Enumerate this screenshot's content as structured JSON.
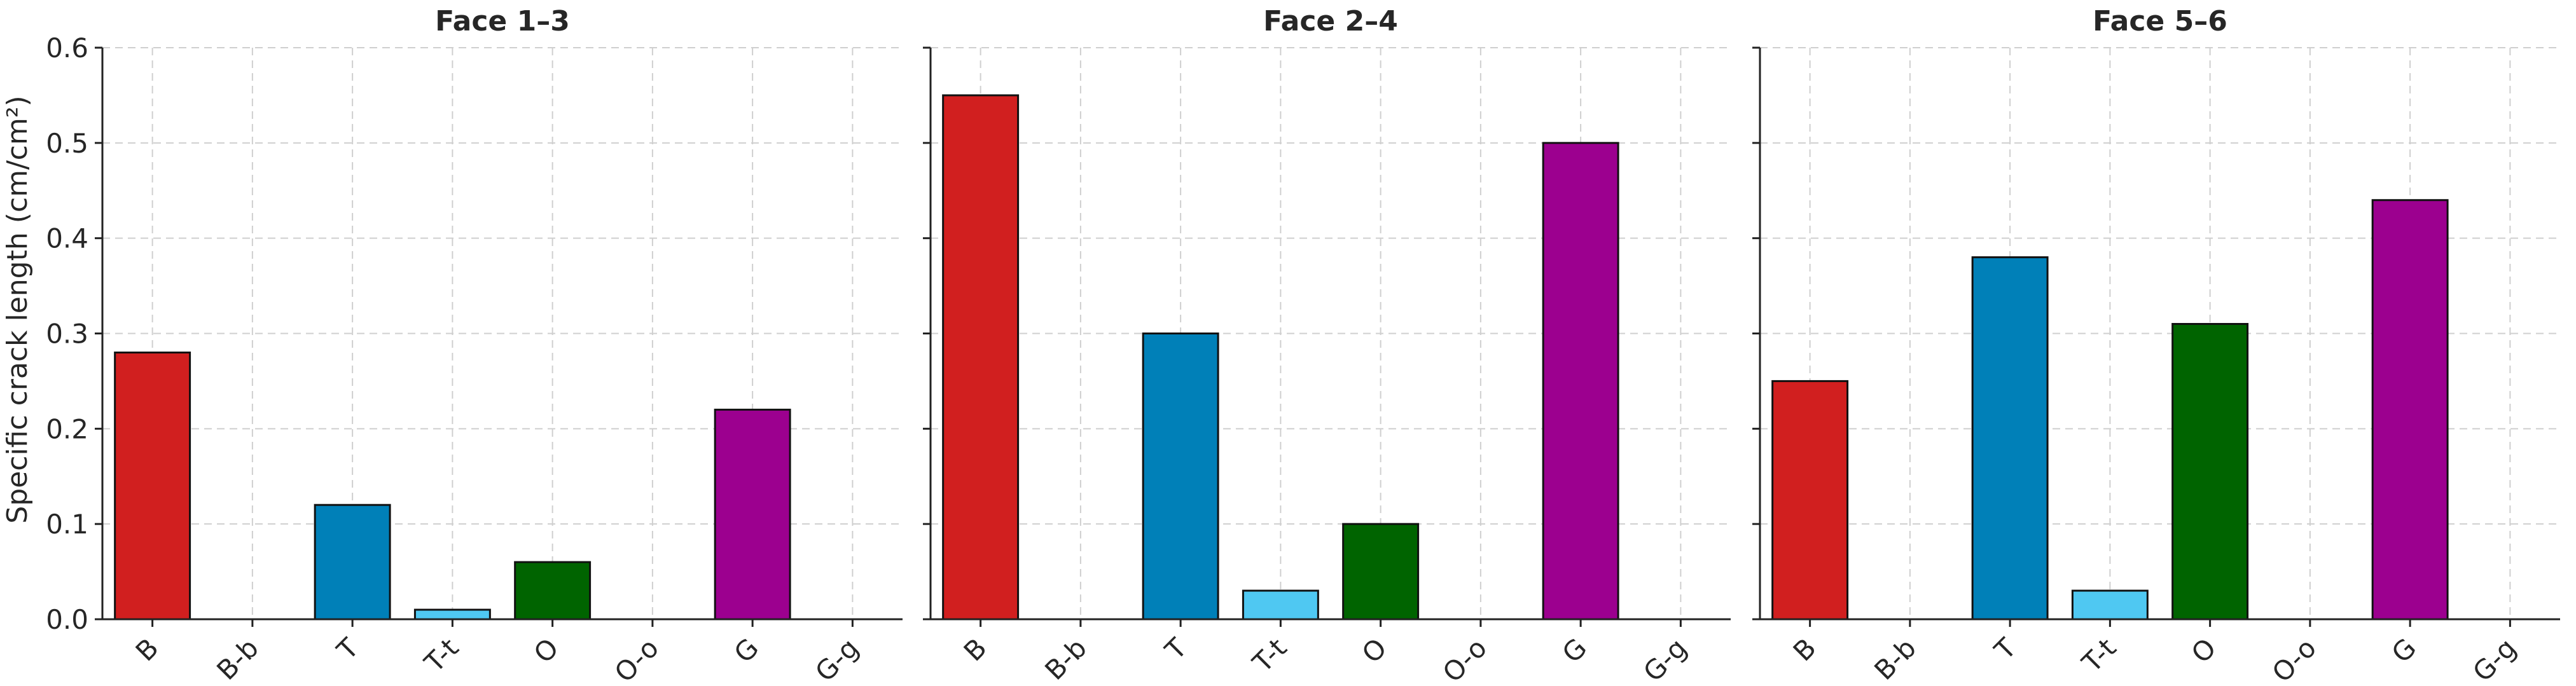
{
  "chart_data": {
    "type": "bar",
    "ylabel": "Specific crack length (cm/cm²)",
    "ylim": [
      0,
      0.6
    ],
    "yticks": [
      "0.0",
      "0.1",
      "0.2",
      "0.3",
      "0.4",
      "0.5",
      "0.6"
    ],
    "categories": [
      "B",
      "B-b",
      "T",
      "T-t",
      "O",
      "O-o",
      "G",
      "G-g"
    ],
    "category_colors": [
      "#d11f1f",
      "#d11f1f",
      "#0080b8",
      "#4fc8f2",
      "#006400",
      "#006400",
      "#9c008f",
      "#9c008f"
    ],
    "grid": true,
    "panels": [
      {
        "title": "Face 1–3",
        "values": [
          0.28,
          0,
          0.12,
          0.01,
          0.06,
          0,
          0.22,
          0
        ]
      },
      {
        "title": "Face 2–4",
        "values": [
          0.55,
          0,
          0.3,
          0.03,
          0.1,
          0,
          0.5,
          0
        ]
      },
      {
        "title": "Face 5–6",
        "values": [
          0.25,
          0,
          0.38,
          0.03,
          0.31,
          0,
          0.44,
          0
        ]
      }
    ]
  }
}
